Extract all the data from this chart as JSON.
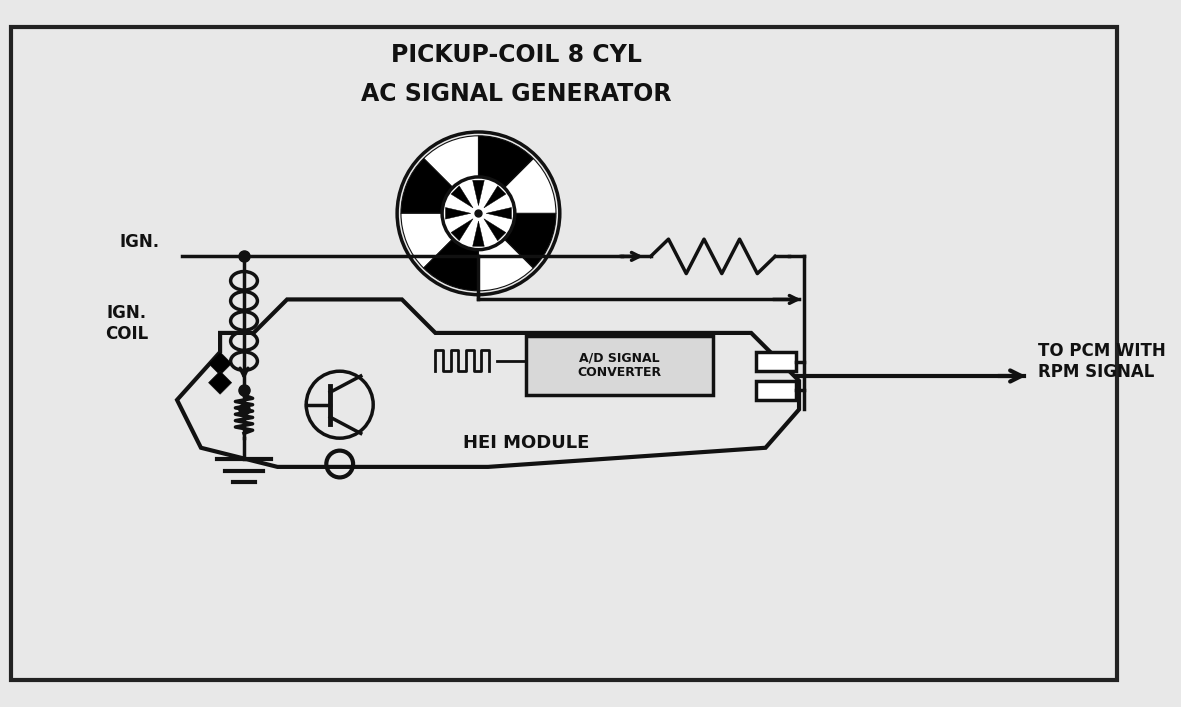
{
  "title_line1": "PICKUP-COIL 8 CYL",
  "title_line2": "AC SIGNAL GENERATOR",
  "label_ign": "IGN.",
  "label_ign_coil": "IGN.\nCOIL",
  "label_hei": "HEI MODULE",
  "label_ad": "A/D SIGNAL\nCONVERTER",
  "label_pcm": "TO PCM WITH\nRPM SIGNAL",
  "bg_color": "#e8e8e8",
  "line_color": "#111111",
  "lw": 2.5,
  "title_fontsize": 17,
  "label_fontsize": 12
}
